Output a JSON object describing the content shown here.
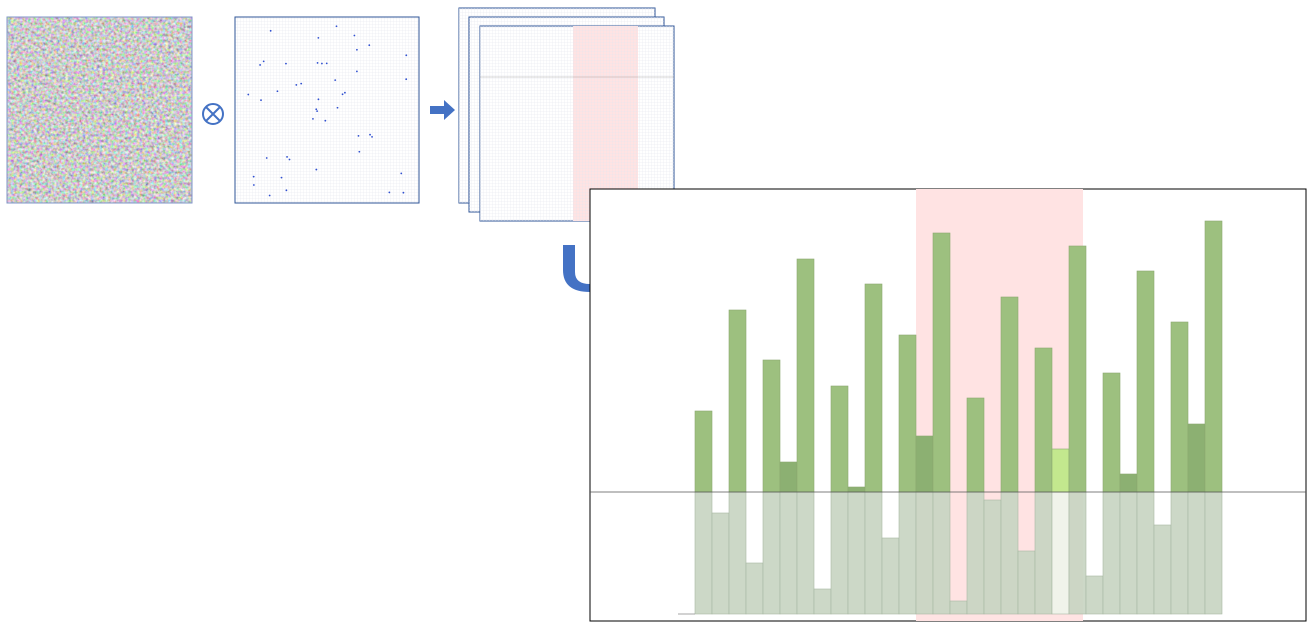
{
  "chart_data": {
    "type": "bar",
    "series": [
      {
        "color": "#9dc07f",
        "overlap_color": "#8cb072",
        "highlight_color": "#c3e88e",
        "values": [
          81,
          0,
          182,
          0,
          132,
          30,
          233,
          0,
          106,
          5,
          208,
          0,
          157,
          56,
          259,
          0,
          94,
          0,
          195,
          0,
          144,
          43,
          246,
          0,
          119,
          18,
          221,
          0,
          170,
          68,
          271
        ]
      },
      {
        "color": "#c6d4c1",
        "highlight_color": "#eef4ea",
        "values": [
          122,
          101,
          122,
          51,
          122,
          122,
          122,
          25,
          122,
          122,
          122,
          76,
          122,
          122,
          122,
          13,
          122,
          114,
          122,
          63,
          122,
          122,
          122,
          38,
          122,
          122,
          122,
          89,
          122,
          122,
          122
        ]
      }
    ],
    "highlight": 21,
    "band": [
      13,
      22
    ],
    "band_color": "#ffe3e3"
  }
}
